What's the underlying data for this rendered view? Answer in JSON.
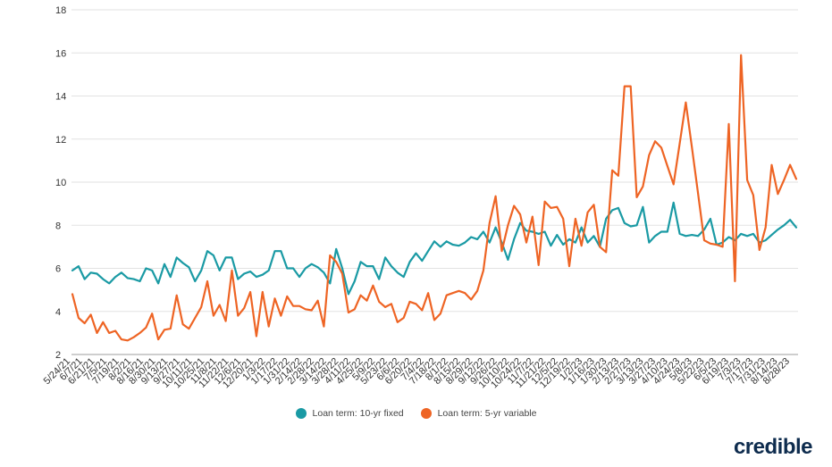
{
  "chart_data": {
    "type": "line",
    "title": "",
    "xlabel": "",
    "ylabel": "",
    "ylim": [
      2,
      18
    ],
    "yticks": [
      2,
      4,
      6,
      8,
      10,
      12,
      14,
      16,
      18
    ],
    "grid": true,
    "legend_position": "bottom",
    "x_tick_labels": [
      "5/24/21",
      "6/7/21",
      "6/21/21",
      "7/5/21",
      "7/19/21",
      "8/2/21",
      "8/16/21",
      "8/30/21",
      "9/13/21",
      "9/27/21",
      "10/11/21",
      "10/25/21",
      "11/8/21",
      "11/22/21",
      "12/6/21",
      "12/20/21",
      "1/3/22",
      "1/17/22",
      "1/31/22",
      "2/14/22",
      "2/28/22",
      "3/14/22",
      "3/28/22",
      "4/11/22",
      "4/25/22",
      "5/9/22",
      "5/23/22",
      "6/6/22",
      "6/20/22",
      "7/4/22",
      "7/18/22",
      "8/1/22",
      "8/15/22",
      "8/29/22",
      "9/12/22",
      "9/26/22",
      "10/10/22",
      "10/24/22",
      "11/7/22",
      "11/21/22",
      "12/5/22",
      "12/19/22",
      "1/2/23",
      "1/16/23",
      "1/30/23",
      "2/13/23",
      "2/27/23",
      "3/13/23",
      "3/27/23",
      "4/10/23",
      "4/24/23",
      "5/8/23",
      "5/22/23",
      "6/5/23",
      "6/19/23",
      "7/3/23",
      "7/17/23",
      "7/31/23",
      "8/14/23",
      "8/28/23"
    ],
    "series": [
      {
        "name": "Loan term: 10-yr fixed",
        "color": "#1a9aa4",
        "values": [
          5.9,
          6.1,
          5.5,
          5.8,
          5.75,
          5.5,
          5.3,
          5.6,
          5.8,
          5.55,
          5.5,
          5.4,
          6.0,
          5.9,
          5.3,
          6.2,
          5.6,
          6.5,
          6.25,
          6.05,
          5.4,
          5.9,
          6.8,
          6.6,
          5.9,
          6.5,
          6.5,
          5.5,
          5.75,
          5.85,
          5.6,
          5.7,
          5.9,
          6.8,
          6.8,
          6.0,
          6.0,
          5.6,
          6.0,
          6.2,
          6.05,
          5.8,
          5.3,
          6.9,
          6.0,
          4.8,
          5.4,
          6.3,
          6.1,
          6.1,
          5.5,
          6.5,
          6.1,
          5.8,
          5.6,
          6.3,
          6.7,
          6.35,
          6.8,
          7.25,
          7.0,
          7.25,
          7.1,
          7.05,
          7.2,
          7.45,
          7.35,
          7.7,
          7.2,
          7.9,
          7.2,
          6.4,
          7.35,
          8.1,
          7.75,
          7.7,
          7.6,
          7.7,
          7.05,
          7.55,
          7.1,
          7.35,
          7.2,
          7.9,
          7.2,
          7.5,
          7.0,
          8.3,
          8.7,
          8.8,
          8.1,
          7.95,
          8.0,
          8.85,
          7.2,
          7.5,
          7.7,
          7.7,
          9.05,
          7.6,
          7.5,
          7.55,
          7.5,
          7.8,
          8.3,
          7.1,
          7.2,
          7.45,
          7.3,
          7.6,
          7.5,
          7.6,
          7.2,
          7.3,
          7.55,
          7.8,
          8.0,
          8.25,
          7.9
        ]
      },
      {
        "name": "Loan term: 5-yr variable",
        "color": "#ee6424",
        "values": [
          4.8,
          3.7,
          3.45,
          3.85,
          3.0,
          3.5,
          3.0,
          3.1,
          2.7,
          2.65,
          2.8,
          3.0,
          3.25,
          3.9,
          2.7,
          3.15,
          3.2,
          4.75,
          3.4,
          3.2,
          3.7,
          4.2,
          5.4,
          3.8,
          4.3,
          3.55,
          5.9,
          3.8,
          4.15,
          4.9,
          2.85,
          4.9,
          3.3,
          4.6,
          3.8,
          4.7,
          4.25,
          4.25,
          4.1,
          4.05,
          4.5,
          3.3,
          6.6,
          6.3,
          5.75,
          3.95,
          4.1,
          4.75,
          4.5,
          5.2,
          4.45,
          4.2,
          4.35,
          3.5,
          3.7,
          4.45,
          4.35,
          4.05,
          4.85,
          3.6,
          3.9,
          4.75,
          4.85,
          4.95,
          4.85,
          4.55,
          4.95,
          5.9,
          8.1,
          9.35,
          6.8,
          8.0,
          8.9,
          8.5,
          7.2,
          8.4,
          6.15,
          9.1,
          8.8,
          8.85,
          8.3,
          6.1,
          8.3,
          7.05,
          8.6,
          8.95,
          7.0,
          6.75,
          10.55,
          10.3,
          14.45,
          14.45,
          9.3,
          9.8,
          11.25,
          11.9,
          11.6,
          10.75,
          9.9,
          11.8,
          13.7,
          11.6,
          9.45,
          7.3,
          7.15,
          7.1,
          7.0,
          12.7,
          5.4,
          15.9,
          10.1,
          9.4,
          6.85,
          7.9,
          10.8,
          9.45,
          10.1,
          10.8,
          10.15
        ]
      }
    ]
  },
  "brand": "credible"
}
